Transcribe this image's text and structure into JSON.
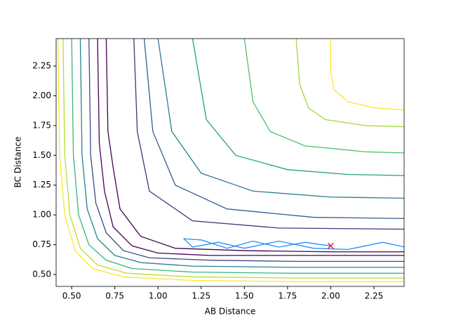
{
  "chart_data": {
    "type": "contour",
    "xlabel": "AB Distance",
    "ylabel": "BC Distance",
    "xlim": [
      0.41,
      2.425
    ],
    "ylim": [
      0.4,
      2.48
    ],
    "xticks": [
      {
        "value": 0.5,
        "label": "0.50"
      },
      0.75,
      {
        "value": 1,
        "label": "1.00"
      },
      1.25,
      {
        "value": 1.5,
        "label": "1.50"
      },
      1.75,
      {
        "value": 2,
        "label": "2.00"
      },
      2.25
    ],
    "yticks": [
      {
        "value": 0.5,
        "label": "0.50"
      },
      0.75,
      {
        "value": 1,
        "label": "1.00"
      },
      1.25,
      {
        "value": 1.5,
        "label": "1.50"
      },
      1.75,
      {
        "value": 2,
        "label": "2.00"
      },
      2.25
    ],
    "series": [
      {
        "color": "#fde725",
        "x": [
          0.42,
          0.43,
          0.46,
          0.52,
          0.62,
          0.8,
          1.2,
          1.8,
          2.43
        ],
        "y": [
          2.48,
          1.5,
          1.0,
          0.7,
          0.55,
          0.48,
          0.45,
          0.44,
          0.44
        ]
      },
      {
        "color": "#b5de2b",
        "x": [
          0.45,
          0.46,
          0.49,
          0.55,
          0.65,
          0.82,
          1.2,
          1.8,
          2.43
        ],
        "y": [
          2.48,
          1.5,
          1.0,
          0.72,
          0.58,
          0.51,
          0.48,
          0.47,
          0.47
        ]
      },
      {
        "color": "#35b779",
        "x": [
          0.5,
          0.51,
          0.54,
          0.6,
          0.7,
          0.85,
          1.2,
          1.8,
          2.43
        ],
        "y": [
          2.48,
          1.5,
          1.0,
          0.75,
          0.62,
          0.55,
          0.52,
          0.51,
          0.51
        ]
      },
      {
        "color": "#26828e",
        "x": [
          0.55,
          0.56,
          0.59,
          0.65,
          0.75,
          0.9,
          1.2,
          1.8,
          2.43
        ],
        "y": [
          2.48,
          1.5,
          1.05,
          0.8,
          0.66,
          0.6,
          0.57,
          0.56,
          0.56
        ]
      },
      {
        "color": "#3e4989",
        "x": [
          0.6,
          0.61,
          0.64,
          0.7,
          0.8,
          0.95,
          1.3,
          1.8,
          2.43
        ],
        "y": [
          2.48,
          1.5,
          1.1,
          0.85,
          0.7,
          0.64,
          0.62,
          0.61,
          0.61
        ]
      },
      {
        "color": "#440154",
        "x": [
          0.65,
          0.66,
          0.69,
          0.74,
          0.85,
          1.0,
          1.3,
          1.8,
          2.43
        ],
        "y": [
          2.48,
          1.6,
          1.2,
          0.9,
          0.74,
          0.68,
          0.66,
          0.66,
          0.66
        ]
      },
      {
        "color": "#440154",
        "x": [
          0.7,
          0.71,
          0.74,
          0.78,
          0.9,
          1.1,
          1.5,
          2.0,
          2.43
        ],
        "y": [
          2.48,
          1.7,
          1.4,
          1.05,
          0.82,
          0.72,
          0.7,
          0.69,
          0.69
        ]
      },
      {
        "color": "#fde725",
        "x": [
          2.0,
          2.0,
          2.02,
          2.1,
          2.25,
          2.43
        ],
        "y": [
          2.48,
          2.2,
          2.05,
          1.95,
          1.9,
          1.88
        ]
      },
      {
        "color": "#a0da39",
        "x": [
          1.8,
          1.82,
          1.87,
          1.97,
          2.2,
          2.43
        ],
        "y": [
          2.48,
          2.1,
          1.9,
          1.8,
          1.75,
          1.74
        ]
      },
      {
        "color": "#4ac16d",
        "x": [
          1.5,
          1.55,
          1.65,
          1.85,
          2.2,
          2.43
        ],
        "y": [
          2.48,
          1.95,
          1.7,
          1.58,
          1.53,
          1.52
        ]
      },
      {
        "color": "#1fa188",
        "x": [
          1.2,
          1.28,
          1.45,
          1.75,
          2.1,
          2.43
        ],
        "y": [
          2.48,
          1.8,
          1.5,
          1.38,
          1.34,
          1.33
        ]
      },
      {
        "color": "#277f8e",
        "x": [
          1.0,
          1.08,
          1.25,
          1.55,
          2.0,
          2.43
        ],
        "y": [
          2.48,
          1.7,
          1.35,
          1.2,
          1.15,
          1.14
        ]
      },
      {
        "color": "#365c8d",
        "x": [
          0.92,
          0.97,
          1.1,
          1.4,
          1.9,
          2.43
        ],
        "y": [
          2.48,
          1.7,
          1.25,
          1.05,
          0.98,
          0.97
        ]
      },
      {
        "color": "#46327e",
        "x": [
          0.86,
          0.88,
          0.95,
          1.2,
          1.7,
          2.43
        ],
        "y": [
          2.48,
          1.7,
          1.2,
          0.95,
          0.89,
          0.88
        ]
      },
      {
        "color": "#1e90ff",
        "x": [
          2.0,
          1.85,
          1.7,
          1.55,
          1.4,
          1.25,
          1.15,
          1.2,
          1.35,
          1.5,
          1.7,
          1.9,
          2.1,
          2.3,
          2.43
        ],
        "y": [
          0.74,
          0.77,
          0.73,
          0.78,
          0.72,
          0.79,
          0.8,
          0.73,
          0.77,
          0.72,
          0.78,
          0.72,
          0.71,
          0.77,
          0.73
        ]
      },
      {
        "color": "#ff0000",
        "marker": "x",
        "x": [
          2.0
        ],
        "y": [
          0.74
        ]
      }
    ]
  }
}
